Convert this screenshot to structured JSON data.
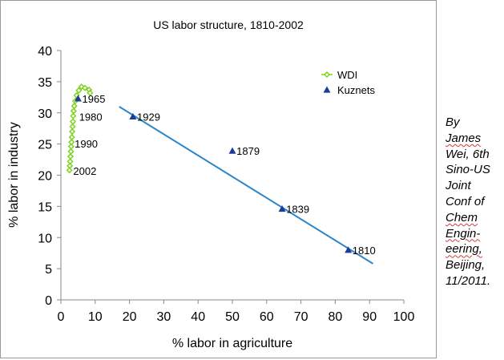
{
  "chart_data": {
    "type": "scatter",
    "title": "US labor structure, 1810-2002",
    "xlabel": "% labor in agriculture",
    "ylabel": "% labor in industry",
    "xlim": [
      0,
      100
    ],
    "ylim": [
      0,
      40
    ],
    "x_ticks": [
      0,
      10,
      20,
      30,
      40,
      50,
      60,
      70,
      80,
      90,
      100
    ],
    "y_ticks": [
      0,
      5,
      10,
      15,
      20,
      25,
      30,
      35,
      40
    ],
    "grid": false,
    "legend_position": "top-right",
    "series": [
      {
        "name": "WDI",
        "marker": "diamond",
        "color": "#7ed321",
        "line": true,
        "x": [
          2.5,
          2.6,
          2.7,
          2.8,
          2.9,
          3.0,
          3.1,
          3.2,
          3.3,
          3.4,
          3.5,
          3.6,
          3.7,
          3.9,
          4.2,
          4.6,
          5.2,
          6.0,
          7.0,
          8.2,
          8.5
        ],
        "y": [
          20.8,
          21.5,
          22.2,
          23.0,
          23.8,
          24.6,
          25.3,
          26.1,
          27.0,
          27.8,
          28.6,
          29.5,
          30.3,
          31.1,
          31.9,
          32.8,
          33.6,
          34.2,
          34.0,
          33.7,
          33.2
        ]
      },
      {
        "name": "Kuznets",
        "marker": "triangle",
        "color": "#1f3b99",
        "line": false,
        "x": [
          5.0,
          21.0,
          50.0,
          64.5,
          83.8
        ],
        "y": [
          32.3,
          29.4,
          23.9,
          14.6,
          8.0
        ]
      }
    ],
    "trendline": {
      "color": "#2e86c8",
      "x": [
        17.0,
        91.0
      ],
      "y": [
        31.0,
        5.8
      ]
    },
    "annotations": [
      {
        "label": "1965",
        "x": 5.5,
        "y": 32.3
      },
      {
        "label": "1980",
        "x": 4.6,
        "y": 29.4
      },
      {
        "label": "1990",
        "x": 3.3,
        "y": 25.1
      },
      {
        "label": "2002",
        "x": 2.9,
        "y": 20.7
      },
      {
        "label": "1929",
        "x": 21.5,
        "y": 29.4
      },
      {
        "label": "1879",
        "x": 50.5,
        "y": 23.9
      },
      {
        "label": "1839",
        "x": 65.0,
        "y": 14.6
      },
      {
        "label": "1810",
        "x": 84.3,
        "y": 8.0
      }
    ]
  },
  "credit_lines": [
    "By",
    "James",
    "Wei, 6th",
    "Sino-US",
    "Joint",
    "Conf of",
    "Chem",
    "Engin-",
    "eering,",
    "Beijing,",
    "11/2011."
  ]
}
